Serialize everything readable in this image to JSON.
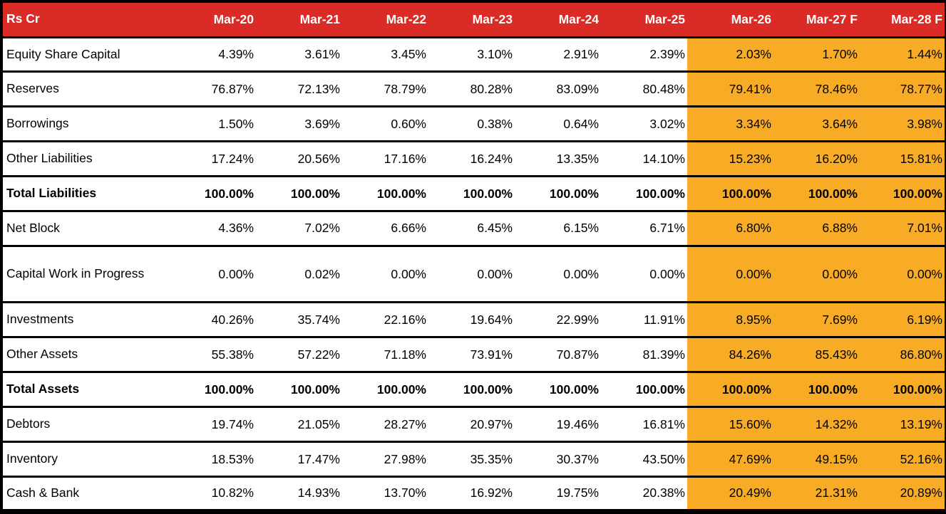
{
  "meta": {
    "unit_label": "Rs Cr"
  },
  "colors": {
    "header_bg": "#DA2B26",
    "header_text": "#FFFFFF",
    "forecast_bg": "#F8AC26",
    "border": "#000000",
    "text": "#000000",
    "body_bg": "#FFFFFF"
  },
  "chart_data": {
    "type": "table",
    "columns": [
      "Mar-20",
      "Mar-21",
      "Mar-22",
      "Mar-23",
      "Mar-24",
      "Mar-25",
      "Mar-26",
      "Mar-27 F",
      "Mar-28 F"
    ],
    "forecast_start_index": 6,
    "forecast_columns": [
      "Mar-26",
      "Mar-27 F",
      "Mar-28 F"
    ],
    "value_format": "percent_2dp",
    "rows": [
      {
        "label": "Equity Share Capital",
        "bold": false,
        "values": [
          4.39,
          3.61,
          3.45,
          3.1,
          2.91,
          2.39,
          2.03,
          1.7,
          1.44
        ]
      },
      {
        "label": "Reserves",
        "bold": false,
        "values": [
          76.87,
          72.13,
          78.79,
          80.28,
          83.09,
          80.48,
          79.41,
          78.46,
          78.77
        ]
      },
      {
        "label": "Borrowings",
        "bold": false,
        "values": [
          1.5,
          3.69,
          0.6,
          0.38,
          0.64,
          3.02,
          3.34,
          3.64,
          3.98
        ]
      },
      {
        "label": "Other Liabilities",
        "bold": false,
        "values": [
          17.24,
          20.56,
          17.16,
          16.24,
          13.35,
          14.1,
          15.23,
          16.2,
          15.81
        ]
      },
      {
        "label": "Total Liabilities",
        "bold": true,
        "values": [
          100.0,
          100.0,
          100.0,
          100.0,
          100.0,
          100.0,
          100.0,
          100.0,
          100.0
        ]
      },
      {
        "label": "Net Block",
        "bold": false,
        "values": [
          4.36,
          7.02,
          6.66,
          6.45,
          6.15,
          6.71,
          6.8,
          6.88,
          7.01
        ]
      },
      {
        "label": "Capital Work in Progress",
        "bold": false,
        "values": [
          0.0,
          0.02,
          0.0,
          0.0,
          0.0,
          0.0,
          0.0,
          0.0,
          0.0
        ]
      },
      {
        "label": "Investments",
        "bold": false,
        "values": [
          40.26,
          35.74,
          22.16,
          19.64,
          22.99,
          11.91,
          8.95,
          7.69,
          6.19
        ]
      },
      {
        "label": "Other Assets",
        "bold": false,
        "values": [
          55.38,
          57.22,
          71.18,
          73.91,
          70.87,
          81.39,
          84.26,
          85.43,
          86.8
        ]
      },
      {
        "label": "Total Assets",
        "bold": true,
        "values": [
          100.0,
          100.0,
          100.0,
          100.0,
          100.0,
          100.0,
          100.0,
          100.0,
          100.0
        ]
      },
      {
        "label": "Debtors",
        "bold": false,
        "values": [
          19.74,
          21.05,
          28.27,
          20.97,
          19.46,
          16.81,
          15.6,
          14.32,
          13.19
        ]
      },
      {
        "label": "Inventory",
        "bold": false,
        "values": [
          18.53,
          17.47,
          27.98,
          35.35,
          30.37,
          43.5,
          47.69,
          49.15,
          52.16
        ]
      },
      {
        "label": "Cash & Bank",
        "bold": false,
        "values": [
          10.82,
          14.93,
          13.7,
          16.92,
          19.75,
          20.38,
          20.49,
          21.31,
          20.89
        ]
      }
    ]
  }
}
